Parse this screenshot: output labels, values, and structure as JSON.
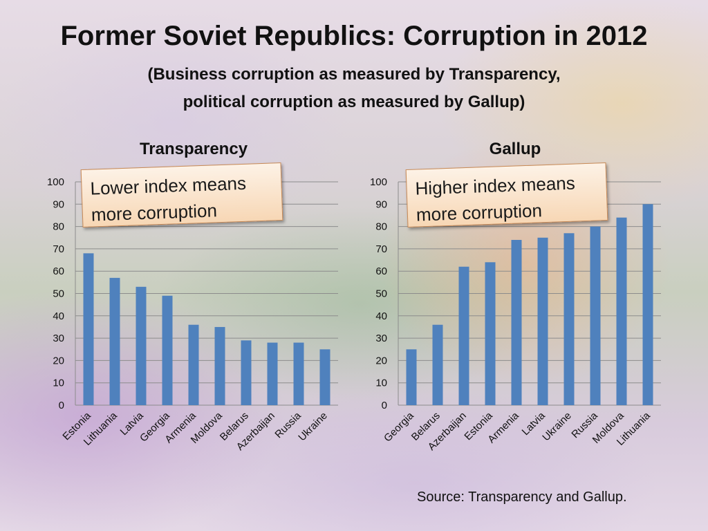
{
  "header": {
    "title": "Former Soviet Republics: Corruption in 2012",
    "subtitle_line1": "(Business corruption as measured by Transparency,",
    "subtitle_line2": "political corruption as measured by Gallup)"
  },
  "callouts": {
    "left": [
      "Lower index means",
      "more corruption"
    ],
    "right": [
      "Higher index means",
      "more corruption"
    ]
  },
  "footer": {
    "source": "Source: Transparency and Gallup."
  },
  "colors": {
    "bar": "#4f81bd",
    "grid": "#8c8c8c"
  },
  "chart_data": [
    {
      "type": "bar",
      "title": "Transparency",
      "categories": [
        "Estonia",
        "Lithuania",
        "Latvia",
        "Georgia",
        "Armenia",
        "Moldova",
        "Belarus",
        "Azerbaijan",
        "Russia",
        "Ukraine"
      ],
      "values": [
        68,
        57,
        53,
        49,
        36,
        35,
        29,
        28,
        28,
        25
      ],
      "ylim": [
        0,
        100
      ],
      "yticks": [
        0,
        10,
        20,
        30,
        40,
        50,
        60,
        70,
        80,
        90,
        100
      ],
      "grid": true
    },
    {
      "type": "bar",
      "title": "Gallup",
      "categories": [
        "Georgia",
        "Belarus",
        "Azerbaijan",
        "Estonia",
        "Armenia",
        "Latvia",
        "Ukraine",
        "Russia",
        "Moldova",
        "Lithuania"
      ],
      "values": [
        25,
        36,
        62,
        64,
        74,
        75,
        77,
        80,
        84,
        90
      ],
      "ylim": [
        0,
        100
      ],
      "yticks": [
        0,
        10,
        20,
        30,
        40,
        50,
        60,
        70,
        80,
        90,
        100
      ],
      "grid": true
    }
  ]
}
